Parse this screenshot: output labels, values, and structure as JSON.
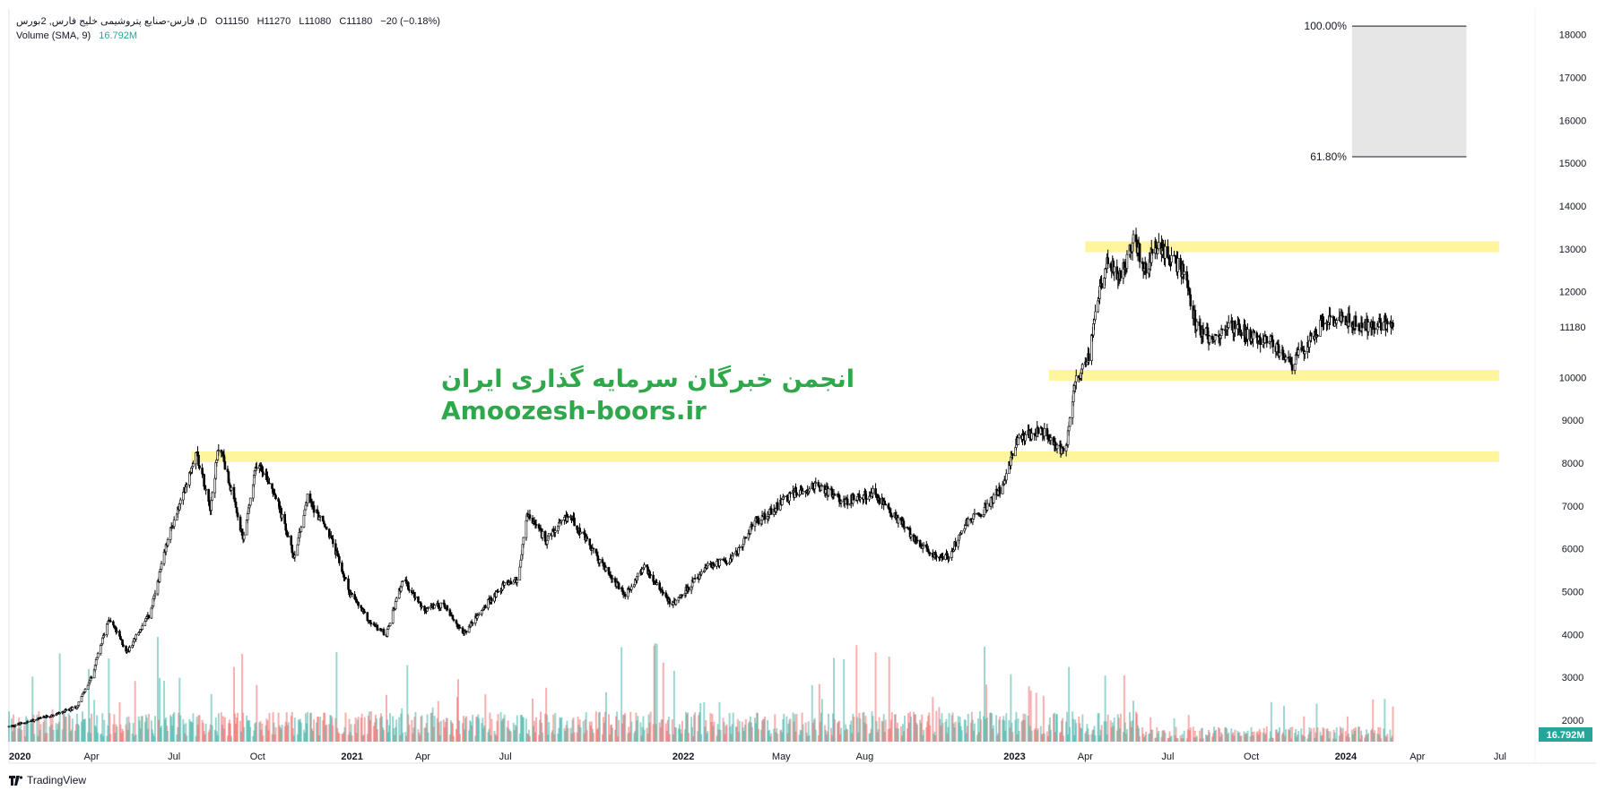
{
  "header": {
    "symbol_line": "فارس-صنایع پتروشیمی خلیج فارس, 2بورس ,D",
    "ohlc_o": "O11150",
    "ohlc_h": "H11270",
    "ohlc_l": "L11080",
    "ohlc_c": "C11180",
    "change": "−20 (−0.18%)",
    "volume_label": "Volume (SMA, 9)",
    "volume_value": "16.792M"
  },
  "watermark": {
    "persian": "انجمن خبرگان سرمایه گذاری ایران",
    "english": "Amoozesh-boors.ir"
  },
  "brand": "TradingView",
  "colors": {
    "candle": "#000000",
    "volume_up": "#26a69a",
    "volume_down": "#ef5350",
    "zone": "#fff59d",
    "fib_box": "#e6e6e6",
    "label_green": "#26a69a"
  },
  "chart_data": {
    "type": "candlestick",
    "ylim": [
      1500,
      18600
    ],
    "y_ticks": [
      2000,
      3000,
      4000,
      5000,
      6000,
      7000,
      8000,
      9000,
      10000,
      11000,
      12000,
      13000,
      14000,
      15000,
      16000,
      17000,
      18000
    ],
    "y_tick_labels": [
      "2000",
      "3000",
      "4000",
      "5000",
      "6000",
      "7000",
      "8000",
      "9000",
      "10000",
      "",
      "12000",
      "13000",
      "14000",
      "15000",
      "16000",
      "17000",
      "18000"
    ],
    "x_range": [
      "2020-01-01",
      "2024-09-30"
    ],
    "x_ticks": [
      {
        "date": "2020-01-01",
        "label": "2020",
        "bold": true
      },
      {
        "date": "2020-04-01",
        "label": "Apr",
        "bold": false
      },
      {
        "date": "2020-07-01",
        "label": "Jul",
        "bold": false
      },
      {
        "date": "2020-10-01",
        "label": "Oct",
        "bold": false
      },
      {
        "date": "2021-01-01",
        "label": "2021",
        "bold": true
      },
      {
        "date": "2021-04-01",
        "label": "Apr",
        "bold": false
      },
      {
        "date": "2021-07-01",
        "label": "Jul",
        "bold": false
      },
      {
        "date": "2022-01-01",
        "label": "2022",
        "bold": true
      },
      {
        "date": "2022-05-01",
        "label": "May",
        "bold": false
      },
      {
        "date": "2022-08-01",
        "label": "Aug",
        "bold": false
      },
      {
        "date": "2023-01-01",
        "label": "2023",
        "bold": true
      },
      {
        "date": "2023-04-01",
        "label": "Apr",
        "bold": false
      },
      {
        "date": "2023-07-01",
        "label": "Jul",
        "bold": false
      },
      {
        "date": "2023-10-01",
        "label": "Oct",
        "bold": false
      },
      {
        "date": "2024-01-01",
        "label": "2024",
        "bold": true
      },
      {
        "date": "2024-04-01",
        "label": "Apr",
        "bold": false
      },
      {
        "date": "2024-07-01",
        "label": "Jul",
        "bold": false
      }
    ],
    "price_path": [
      [
        "2020-01-01",
        1850
      ],
      [
        "2020-02-15",
        2100
      ],
      [
        "2020-03-15",
        2300
      ],
      [
        "2020-04-01",
        3000
      ],
      [
        "2020-04-20",
        4400
      ],
      [
        "2020-05-10",
        3600
      ],
      [
        "2020-06-05",
        4500
      ],
      [
        "2020-06-25",
        6300
      ],
      [
        "2020-07-10",
        7200
      ],
      [
        "2020-07-25",
        8300
      ],
      [
        "2020-08-10",
        7000
      ],
      [
        "2020-08-20",
        8500
      ],
      [
        "2020-09-15",
        6200
      ],
      [
        "2020-10-01",
        8100
      ],
      [
        "2020-10-20",
        7300
      ],
      [
        "2020-11-10",
        5800
      ],
      [
        "2020-11-25",
        7200
      ],
      [
        "2020-12-20",
        6300
      ],
      [
        "2021-01-10",
        5000
      ],
      [
        "2021-02-01",
        4300
      ],
      [
        "2021-02-20",
        4000
      ],
      [
        "2021-03-10",
        5300
      ],
      [
        "2021-04-01",
        4600
      ],
      [
        "2021-04-25",
        4700
      ],
      [
        "2021-05-15",
        4000
      ],
      [
        "2021-06-10",
        4700
      ],
      [
        "2021-07-01",
        5200
      ],
      [
        "2021-07-15",
        5300
      ],
      [
        "2021-07-25",
        6800
      ],
      [
        "2021-08-15",
        6200
      ],
      [
        "2021-09-10",
        6800
      ],
      [
        "2021-10-10",
        5800
      ],
      [
        "2021-11-10",
        4900
      ],
      [
        "2021-12-01",
        5600
      ],
      [
        "2022-01-01",
        4700
      ],
      [
        "2022-02-10",
        5600
      ],
      [
        "2022-03-10",
        5800
      ],
      [
        "2022-04-01",
        6600
      ],
      [
        "2022-04-20",
        6900
      ],
      [
        "2022-05-15",
        7300
      ],
      [
        "2022-06-10",
        7500
      ],
      [
        "2022-07-10",
        7100
      ],
      [
        "2022-08-10",
        7300
      ],
      [
        "2022-09-10",
        6600
      ],
      [
        "2022-10-10",
        5900
      ],
      [
        "2022-11-01",
        5800
      ],
      [
        "2022-11-20",
        6600
      ],
      [
        "2022-12-10",
        6900
      ],
      [
        "2023-01-01",
        7500
      ],
      [
        "2023-01-15",
        8500
      ],
      [
        "2023-02-10",
        8800
      ],
      [
        "2023-02-28",
        8400
      ],
      [
        "2023-03-10",
        8200
      ],
      [
        "2023-03-20",
        9900
      ],
      [
        "2023-04-05",
        10500
      ],
      [
        "2023-04-15",
        11800
      ],
      [
        "2023-04-25",
        12800
      ],
      [
        "2023-05-10",
        12300
      ],
      [
        "2023-05-25",
        13300
      ],
      [
        "2023-06-05",
        12500
      ],
      [
        "2023-06-20",
        13100
      ],
      [
        "2023-07-05",
        12800
      ],
      [
        "2023-07-20",
        12400
      ],
      [
        "2023-08-01",
        11200
      ],
      [
        "2023-08-20",
        10900
      ],
      [
        "2023-09-10",
        11200
      ],
      [
        "2023-10-01",
        11000
      ],
      [
        "2023-10-25",
        10800
      ],
      [
        "2023-11-15",
        10300
      ],
      [
        "2023-12-01",
        10800
      ],
      [
        "2023-12-20",
        11300
      ],
      [
        "2024-01-05",
        11400
      ],
      [
        "2024-02-01",
        11200
      ],
      [
        "2024-03-01",
        11300
      ],
      [
        "2024-03-05",
        11180
      ]
    ],
    "zones": [
      {
        "from": "2020-07-20",
        "to": "2024-06-30",
        "y": 8150
      },
      {
        "from": "2023-02-20",
        "to": "2024-06-30",
        "y": 10050
      },
      {
        "from": "2023-04-01",
        "to": "2024-06-30",
        "y": 13050
      }
    ],
    "fib": {
      "from": "2024-01-20",
      "to": "2024-05-25",
      "levels": [
        {
          "label": "100.00%",
          "value": 18200
        },
        {
          "label": "61.80%",
          "value": 15150
        }
      ]
    },
    "last_price": {
      "label": "11180",
      "value": 11180
    },
    "volume_tag": "16.792M"
  }
}
